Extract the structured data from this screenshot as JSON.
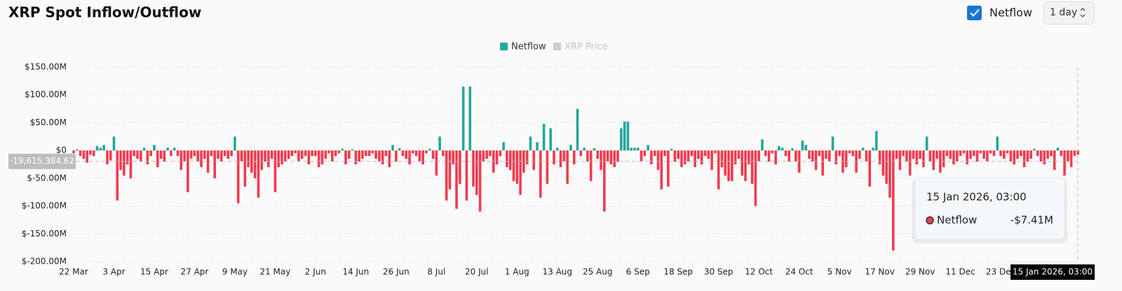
{
  "chart_data": {
    "type": "bar",
    "title": "XRP Spot Inflow/Outflow",
    "controls": {
      "checkbox_label": "Netflow",
      "interval": "1 day"
    },
    "legend": [
      {
        "name": "Netflow",
        "color": "#26a69a",
        "active": true
      },
      {
        "name": "XRP Price",
        "color": "#cccccc",
        "active": false
      }
    ],
    "positive_color": "#26a69a",
    "negative_color": "#ef3b4f",
    "ylim": [
      -200,
      150
    ],
    "yticks": [
      {
        "value": 150,
        "label": "$150.00M"
      },
      {
        "value": 100,
        "label": "$100.00M"
      },
      {
        "value": 50,
        "label": "$50.00M"
      },
      {
        "value": 0,
        "label": "$0"
      },
      {
        "value": -50,
        "label": "$-50.00M"
      },
      {
        "value": -100,
        "label": "$-100.00M"
      },
      {
        "value": -150,
        "label": "$-150.00M"
      },
      {
        "value": -200,
        "label": "$-200.00M"
      }
    ],
    "grid": true,
    "categories": [
      "22 Mar",
      null,
      null,
      null,
      null,
      null,
      null,
      null,
      null,
      null,
      null,
      null,
      "3 Apr",
      null,
      null,
      null,
      null,
      null,
      null,
      null,
      null,
      null,
      null,
      null,
      "15 Apr",
      null,
      null,
      null,
      null,
      null,
      null,
      null,
      null,
      null,
      null,
      null,
      "27 Apr",
      null,
      null,
      null,
      null,
      null,
      null,
      null,
      null,
      null,
      null,
      null,
      "9 May",
      null,
      null,
      null,
      null,
      null,
      null,
      null,
      null,
      null,
      null,
      null,
      "21 May",
      null,
      null,
      null,
      null,
      null,
      null,
      null,
      null,
      null,
      null,
      null,
      "2 Jun",
      null,
      null,
      null,
      null,
      null,
      null,
      null,
      null,
      null,
      null,
      null,
      "14 Jun",
      null,
      null,
      null,
      null,
      null,
      null,
      null,
      null,
      null,
      null,
      null,
      "26 Jun",
      null,
      null,
      null,
      null,
      null,
      null,
      null,
      null,
      null,
      null,
      null,
      "8 Jul",
      null,
      null,
      null,
      null,
      null,
      null,
      null,
      null,
      null,
      null,
      null,
      "20 Jul",
      null,
      null,
      null,
      null,
      null,
      null,
      null,
      null,
      null,
      null,
      null,
      "1 Aug",
      null,
      null,
      null,
      null,
      null,
      null,
      null,
      null,
      null,
      null,
      null,
      "13 Aug",
      null,
      null,
      null,
      null,
      null,
      null,
      null,
      null,
      null,
      null,
      null,
      "25 Aug",
      null,
      null,
      null,
      null,
      null,
      null,
      null,
      null,
      null,
      null,
      null,
      "6 Sep",
      null,
      null,
      null,
      null,
      null,
      null,
      null,
      null,
      null,
      null,
      null,
      "18 Sep",
      null,
      null,
      null,
      null,
      null,
      null,
      null,
      null,
      null,
      null,
      null,
      "30 Sep",
      null,
      null,
      null,
      null,
      null,
      null,
      null,
      null,
      null,
      null,
      null,
      "12 Oct",
      null,
      null,
      null,
      null,
      null,
      null,
      null,
      null,
      null,
      null,
      null,
      "24 Oct",
      null,
      null,
      null,
      null,
      null,
      null,
      null,
      null,
      null,
      null,
      null,
      "5 Nov",
      null,
      null,
      null,
      null,
      null,
      null,
      null,
      null,
      null,
      null,
      null,
      "17 Nov",
      null,
      null,
      null,
      null,
      null,
      null,
      null,
      null,
      null,
      null,
      null,
      "29 Nov",
      null,
      null,
      null,
      null,
      null,
      null,
      null,
      null,
      null,
      null,
      null,
      "11 Dec",
      null,
      null,
      null,
      null,
      null,
      null,
      null,
      null,
      null,
      null,
      null,
      "23 Dec",
      null,
      null,
      null,
      null,
      null,
      null,
      null,
      null,
      null,
      null,
      null,
      null,
      null,
      null,
      null,
      null,
      null,
      null,
      null,
      null,
      null,
      null,
      null
    ],
    "series": [
      {
        "name": "Netflow",
        "values": [
          -5,
          2,
          -10,
          -15,
          -22,
          -8,
          -10,
          8,
          5,
          10,
          -25,
          -18,
          25,
          -90,
          -35,
          -45,
          -25,
          -50,
          -10,
          -15,
          -20,
          5,
          -25,
          -10,
          10,
          -30,
          -15,
          -20,
          5,
          -10,
          5,
          -10,
          -35,
          -20,
          -75,
          -15,
          -10,
          -20,
          -30,
          -15,
          -40,
          -10,
          -50,
          -15,
          -20,
          -10,
          -15,
          -10,
          25,
          -95,
          -20,
          -65,
          -30,
          -40,
          -50,
          -85,
          -35,
          -20,
          -30,
          -15,
          -75,
          -30,
          -25,
          -20,
          -15,
          -10,
          -5,
          -20,
          -15,
          -10,
          -25,
          -10,
          -10,
          -30,
          -25,
          -15,
          -5,
          -20,
          -10,
          -5,
          3,
          -25,
          -15,
          2,
          -25,
          -20,
          -15,
          -10,
          -10,
          -5,
          -15,
          -20,
          -25,
          -10,
          -30,
          10,
          -20,
          4,
          -10,
          -15,
          -25,
          -5,
          -10,
          -20,
          -25,
          -5,
          3,
          -15,
          -45,
          25,
          -10,
          -90,
          -70,
          -25,
          -105,
          -60,
          115,
          -90,
          115,
          -65,
          -80,
          -110,
          -20,
          -15,
          -10,
          -40,
          -25,
          -10,
          15,
          -30,
          -35,
          -55,
          -60,
          -80,
          -40,
          -25,
          25,
          -35,
          15,
          -85,
          48,
          -60,
          40,
          -25,
          5,
          -30,
          -20,
          -60,
          10,
          -25,
          75,
          -10,
          5,
          -20,
          -55,
          4,
          -15,
          -35,
          -110,
          -20,
          -25,
          -30,
          -20,
          40,
          52,
          52,
          5,
          5,
          5,
          -20,
          -10,
          10,
          -25,
          -10,
          -35,
          -70,
          -10,
          -65,
          3,
          -20,
          -15,
          -30,
          -25,
          -20,
          -10,
          -30,
          -15,
          -25,
          -10,
          -15,
          -35,
          -5,
          -70,
          -30,
          -45,
          -55,
          -55,
          -25,
          -15,
          -45,
          -55,
          -25,
          -60,
          -100,
          -20,
          20,
          -10,
          -20,
          -5,
          -25,
          8,
          5,
          -10,
          -20,
          4,
          -20,
          -40,
          18,
          10,
          -15,
          -20,
          -35,
          -10,
          -45,
          -15,
          -20,
          25,
          -25,
          -10,
          -40,
          -30,
          -5,
          -10,
          -40,
          -15,
          5,
          -20,
          -65,
          5,
          35,
          -25,
          -45,
          -60,
          -85,
          -180,
          -15,
          -35,
          -10,
          -20,
          -45,
          -15,
          -25,
          -15,
          -30,
          25,
          -20,
          -35,
          -15,
          -40,
          -30,
          -10,
          -15,
          -25,
          -20,
          -10,
          -5,
          -25,
          -15,
          -10,
          -20,
          -5,
          -15,
          -20,
          -5,
          -10,
          25,
          -10,
          -15,
          -5,
          -20,
          -25,
          -15,
          -10,
          -30,
          -20,
          -15,
          3,
          -10,
          -20,
          -25,
          -15,
          -10,
          -35,
          5,
          -10,
          -45,
          -20,
          -30,
          -10,
          -7.41
        ]
      }
    ],
    "crosshair": {
      "value": -19.61538462,
      "label": "-19,615,384.62"
    },
    "tooltip": {
      "title": "15 Jan 2026, 03:00",
      "series": "Netflow",
      "value_label": "-$7.41M"
    }
  }
}
